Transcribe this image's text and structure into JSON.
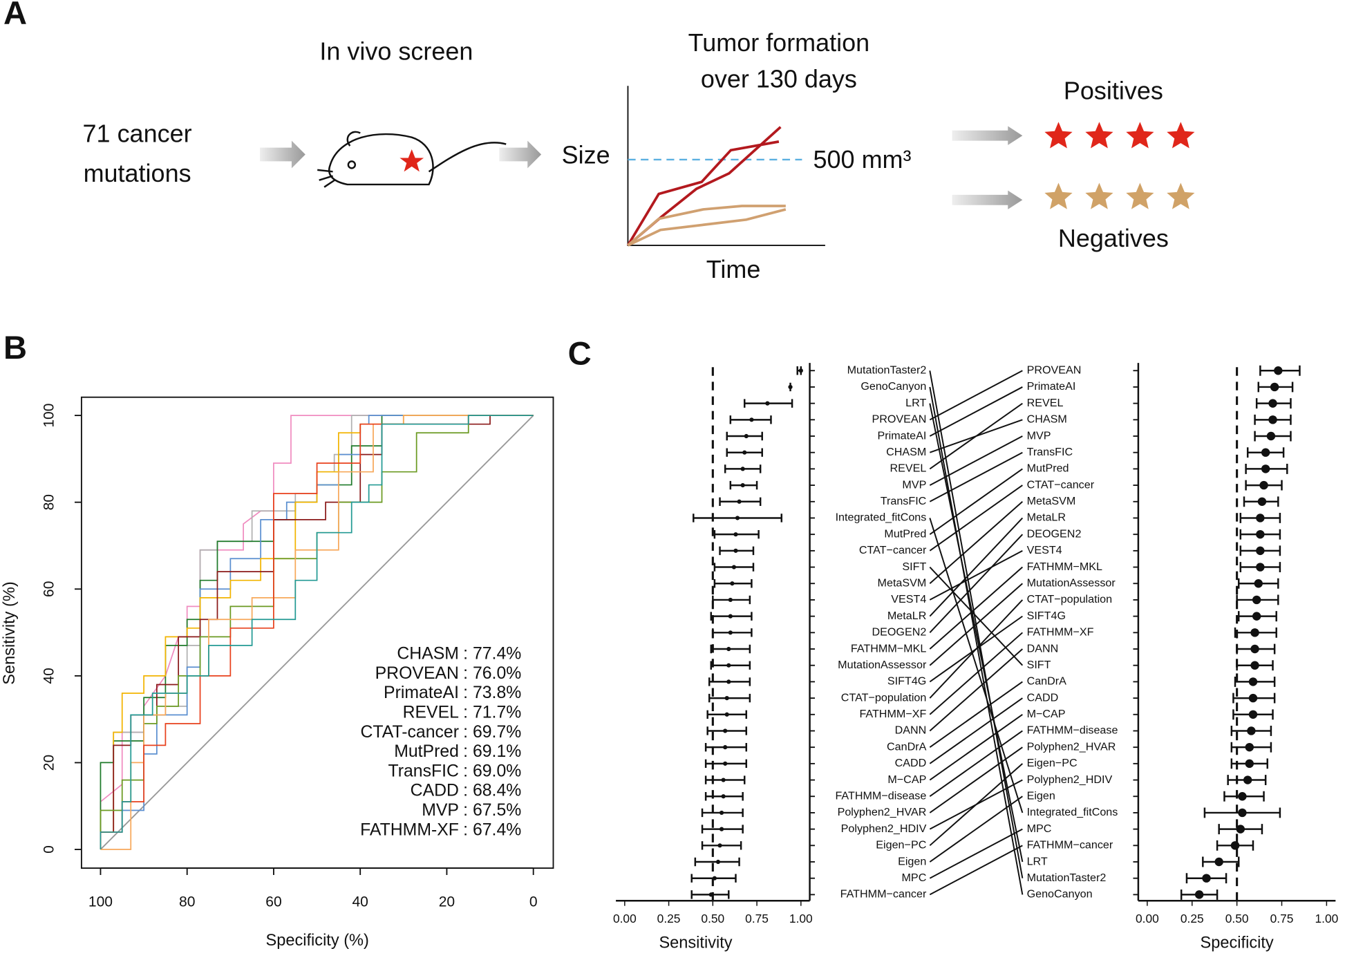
{
  "diagram": {
    "panel": "A",
    "input_text": [
      "71 cancer",
      "mutations"
    ],
    "screen_title": "In vivo screen",
    "tumor_title": [
      "Tumor formation",
      "over 130 days"
    ],
    "y_label": "Size",
    "x_label": "Time",
    "threshold_label": "500 mm³",
    "positives": "Positives",
    "negatives": "Negatives"
  },
  "chart_data": [
    {
      "type": "line",
      "panel": "B",
      "xlabel": "Specificity (%)",
      "ylabel": "Sensitivity (%)",
      "xlim": [
        104.4,
        -4.6
      ],
      "ylim": [
        -4.3,
        104.2
      ],
      "xticks": [
        100,
        80,
        60,
        40,
        20,
        0
      ],
      "yticks": [
        0,
        20,
        40,
        60,
        80,
        100
      ],
      "legend": "bottom-right",
      "series": [
        {
          "name": "CHASM",
          "auc": ": 77.4%",
          "color": "#f08cc0",
          "x": [
            100,
            100,
            95,
            95,
            90,
            90,
            85,
            82,
            80,
            80,
            77,
            77,
            67,
            67,
            63,
            60,
            60,
            56,
            56,
            0
          ],
          "values": [
            0,
            11,
            15,
            27,
            27,
            33,
            40,
            49,
            49,
            56,
            56,
            69,
            69,
            75,
            78,
            78,
            89,
            89,
            100,
            100
          ]
        },
        {
          "name": "PROVEAN",
          "auc": ": 76.0%",
          "color": "#b0b0b0",
          "x": [
            100,
            100,
            97,
            97,
            90,
            90,
            85,
            85,
            80,
            80,
            77,
            77,
            73,
            73,
            65,
            65,
            55,
            55,
            50,
            50,
            46,
            46,
            42,
            42,
            0
          ],
          "values": [
            0,
            4,
            4,
            27,
            27,
            31,
            31,
            33,
            33,
            47,
            47,
            69,
            69,
            71,
            71,
            78,
            78,
            82,
            82,
            87,
            87,
            91,
            91,
            100,
            100
          ]
        },
        {
          "name": "PrimateAI",
          "auc": ": 73.8%",
          "color": "#1f7a2a",
          "x": [
            100,
            100,
            97,
            97,
            90,
            90,
            85,
            85,
            80,
            80,
            77,
            77,
            73,
            73,
            60,
            60,
            55,
            55,
            50,
            50,
            42,
            42,
            35,
            35,
            0
          ],
          "values": [
            0,
            20,
            20,
            25,
            25,
            35,
            35,
            47,
            47,
            53,
            53,
            62,
            62,
            71,
            71,
            76,
            76,
            80,
            80,
            84,
            84,
            93,
            93,
            100,
            100
          ]
        },
        {
          "name": "REVEL",
          "auc": ": 71.7%",
          "color": "#5b8fd0",
          "x": [
            100,
            100,
            95,
            95,
            90,
            90,
            87,
            87,
            80,
            80,
            77,
            77,
            70,
            70,
            63,
            63,
            57,
            57,
            50,
            50,
            45,
            45,
            40,
            40,
            38,
            38,
            0
          ],
          "values": [
            0,
            4,
            4,
            9,
            9,
            22,
            22,
            31,
            31,
            42,
            42,
            60,
            60,
            67,
            67,
            76,
            76,
            80,
            80,
            84,
            84,
            91,
            91,
            98,
            98,
            100,
            100
          ]
        },
        {
          "name": "CTAT-cancer",
          "auc": ": 69.7%",
          "color": "#f2b400",
          "x": [
            100,
            100,
            97,
            97,
            95,
            95,
            90,
            90,
            85,
            85,
            80,
            80,
            77,
            77,
            70,
            70,
            63,
            63,
            55,
            55,
            50,
            50,
            45,
            45,
            40,
            40,
            30,
            30,
            0
          ],
          "values": [
            0,
            4,
            4,
            27,
            27,
            36,
            36,
            40,
            40,
            49,
            49,
            51,
            51,
            58,
            58,
            62,
            62,
            67,
            67,
            80,
            80,
            87,
            87,
            96,
            96,
            98,
            98,
            100,
            100
          ]
        },
        {
          "name": "MutPred",
          "auc": ": 69.1%",
          "color": "#8b1a1a",
          "x": [
            100,
            100,
            97,
            97,
            93,
            93,
            87,
            87,
            82,
            82,
            77,
            77,
            73,
            73,
            60,
            60,
            48,
            48,
            40,
            40,
            35,
            35,
            10,
            10,
            0
          ],
          "values": [
            0,
            4,
            4,
            24,
            24,
            31,
            31,
            38,
            38,
            49,
            49,
            53,
            53,
            64,
            64,
            76,
            76,
            80,
            80,
            91,
            91,
            98,
            98,
            100,
            100
          ]
        },
        {
          "name": "TransFIC",
          "auc": ": 69.0%",
          "color": "#6b9a22",
          "x": [
            100,
            100,
            95,
            95,
            90,
            90,
            87,
            87,
            82,
            82,
            77,
            77,
            70,
            70,
            60,
            60,
            50,
            50,
            45,
            45,
            35,
            35,
            27,
            27,
            15,
            15,
            0
          ],
          "values": [
            0,
            9,
            9,
            16,
            16,
            29,
            29,
            33,
            33,
            40,
            40,
            49,
            49,
            56,
            56,
            67,
            67,
            73,
            73,
            80,
            80,
            87,
            87,
            96,
            96,
            100,
            100
          ]
        },
        {
          "name": "CADD",
          "auc": ": 68.4%",
          "color": "#f7a85a",
          "x": [
            100,
            93,
            93,
            90,
            90,
            85,
            85,
            80,
            80,
            75,
            75,
            65,
            65,
            55,
            55,
            45,
            45,
            37,
            37,
            30,
            30,
            0
          ],
          "values": [
            0,
            0,
            20,
            20,
            31,
            31,
            36,
            36,
            40,
            40,
            53,
            53,
            58,
            58,
            69,
            69,
            87,
            87,
            98,
            98,
            100,
            100
          ]
        },
        {
          "name": "MVP",
          "auc": ": 67.5%",
          "color": "#e8401c",
          "x": [
            100,
            100,
            95,
            95,
            90,
            90,
            85,
            85,
            77,
            77,
            70,
            70,
            60,
            60,
            50,
            50,
            40,
            40,
            15,
            15,
            0
          ],
          "values": [
            0,
            4,
            4,
            11,
            11,
            24,
            24,
            29,
            29,
            40,
            40,
            51,
            51,
            82,
            82,
            89,
            89,
            98,
            98,
            100,
            100
          ]
        },
        {
          "name": "FATHMM-XF",
          "auc": ": 67.4%",
          "color": "#239a94",
          "x": [
            100,
            100,
            95,
            95,
            93,
            93,
            88,
            88,
            80,
            80,
            75,
            75,
            65,
            65,
            55,
            55,
            50,
            50,
            42,
            42,
            38,
            38,
            35,
            35,
            15,
            15,
            0
          ],
          "values": [
            0,
            4,
            4,
            11,
            11,
            31,
            31,
            36,
            36,
            40,
            40,
            47,
            47,
            53,
            53,
            62,
            62,
            73,
            73,
            80,
            80,
            84,
            84,
            98,
            98,
            100,
            100
          ]
        }
      ]
    },
    {
      "type": "dot",
      "panel": "C",
      "xlabel": "Sensitivity",
      "axis_side": "right",
      "label_side": "right",
      "reference": 0.5,
      "xlim": [
        -0.05,
        1.05
      ],
      "xticks": [
        {
          "value": 0,
          "label": "0.00"
        },
        {
          "value": 0.25,
          "label": "0.25"
        },
        {
          "value": 0.5,
          "label": "0.50"
        },
        {
          "value": 0.75,
          "label": "0.75"
        },
        {
          "value": 1,
          "label": "1.00"
        }
      ],
      "categories": [
        "MutationTaster2",
        "GenoCanyon",
        "LRT",
        "PROVEAN",
        "PrimateAI",
        "CHASM",
        "REVEL",
        "MVP",
        "TransFIC",
        "Integrated_fitCons",
        "MutPred",
        "CTAT−cancer",
        "SIFT",
        "MetaSVM",
        "VEST4",
        "MetaLR",
        "DEOGEN2",
        "FATHMM−MKL",
        "MutationAssessor",
        "SIFT4G",
        "CTAT−population",
        "FATHMM−XF",
        "DANN",
        "CanDrA",
        "CADD",
        "M−CAP",
        "FATHMM−disease",
        "Polyphen2_HVAR",
        "Polyphen2_HDIV",
        "Eigen−PC",
        "Eigen",
        "MPC",
        "FATHMM−cancer"
      ],
      "values": [
        1.0,
        0.94,
        0.81,
        0.72,
        0.69,
        0.68,
        0.67,
        0.67,
        0.65,
        0.64,
        0.63,
        0.63,
        0.62,
        0.61,
        0.6,
        0.6,
        0.6,
        0.59,
        0.59,
        0.59,
        0.58,
        0.58,
        0.57,
        0.57,
        0.57,
        0.56,
        0.56,
        0.55,
        0.55,
        0.54,
        0.53,
        0.51,
        0.49
      ],
      "lower": [
        0.98,
        0.94,
        0.68,
        0.6,
        0.58,
        0.58,
        0.57,
        0.6,
        0.54,
        0.39,
        0.51,
        0.54,
        0.51,
        0.51,
        0.5,
        0.49,
        0.5,
        0.49,
        0.49,
        0.48,
        0.48,
        0.47,
        0.47,
        0.46,
        0.46,
        0.46,
        0.46,
        0.44,
        0.44,
        0.44,
        0.4,
        0.38,
        0.38
      ],
      "upper": [
        1.0,
        0.94,
        0.95,
        0.83,
        0.78,
        0.78,
        0.77,
        0.75,
        0.77,
        0.89,
        0.76,
        0.73,
        0.73,
        0.72,
        0.71,
        0.72,
        0.72,
        0.71,
        0.71,
        0.71,
        0.71,
        0.69,
        0.69,
        0.69,
        0.69,
        0.68,
        0.67,
        0.67,
        0.67,
        0.66,
        0.65,
        0.63,
        0.59
      ]
    },
    {
      "type": "dot",
      "xlabel": "Specificity",
      "axis_side": "left",
      "label_side": "left",
      "reference": 0.5,
      "xlim": [
        -0.05,
        1.05
      ],
      "xticks": [
        {
          "value": 0,
          "label": "0.00"
        },
        {
          "value": 0.25,
          "label": "0.25"
        },
        {
          "value": 0.5,
          "label": "0.50"
        },
        {
          "value": 0.75,
          "label": "0.75"
        },
        {
          "value": 1,
          "label": "1.00"
        }
      ],
      "categories": [
        "PROVEAN",
        "PrimateAI",
        "REVEL",
        "CHASM",
        "MVP",
        "TransFIC",
        "MutPred",
        "CTAT−cancer",
        "MetaSVM",
        "MetaLR",
        "DEOGEN2",
        "VEST4",
        "FATHMM−MKL",
        "MutationAssessor",
        "CTAT−population",
        "SIFT4G",
        "FATHMM−XF",
        "DANN",
        "SIFT",
        "CanDrA",
        "CADD",
        "M−CAP",
        "FATHMM−disease",
        "Polyphen2_HVAR",
        "Eigen−PC",
        "Polyphen2_HDIV",
        "Eigen",
        "Integrated_fitCons",
        "MPC",
        "FATHMM−cancer",
        "LRT",
        "MutationTaster2",
        "GenoCanyon"
      ],
      "values": [
        0.73,
        0.71,
        0.7,
        0.7,
        0.69,
        0.66,
        0.66,
        0.65,
        0.64,
        0.63,
        0.63,
        0.63,
        0.63,
        0.62,
        0.61,
        0.61,
        0.6,
        0.6,
        0.6,
        0.59,
        0.59,
        0.59,
        0.58,
        0.57,
        0.57,
        0.56,
        0.53,
        0.53,
        0.52,
        0.49,
        0.4,
        0.33,
        0.29
      ],
      "lower": [
        0.63,
        0.62,
        0.61,
        0.6,
        0.6,
        0.56,
        0.55,
        0.55,
        0.54,
        0.52,
        0.52,
        0.52,
        0.52,
        0.51,
        0.5,
        0.51,
        0.49,
        0.5,
        0.5,
        0.49,
        0.48,
        0.48,
        0.47,
        0.47,
        0.47,
        0.45,
        0.43,
        0.32,
        0.4,
        0.39,
        0.31,
        0.22,
        0.19
      ],
      "upper": [
        0.85,
        0.81,
        0.8,
        0.8,
        0.8,
        0.76,
        0.78,
        0.75,
        0.73,
        0.74,
        0.74,
        0.74,
        0.74,
        0.73,
        0.73,
        0.72,
        0.72,
        0.71,
        0.7,
        0.71,
        0.71,
        0.7,
        0.69,
        0.69,
        0.67,
        0.66,
        0.65,
        0.74,
        0.64,
        0.59,
        0.51,
        0.44,
        0.39
      ]
    }
  ]
}
